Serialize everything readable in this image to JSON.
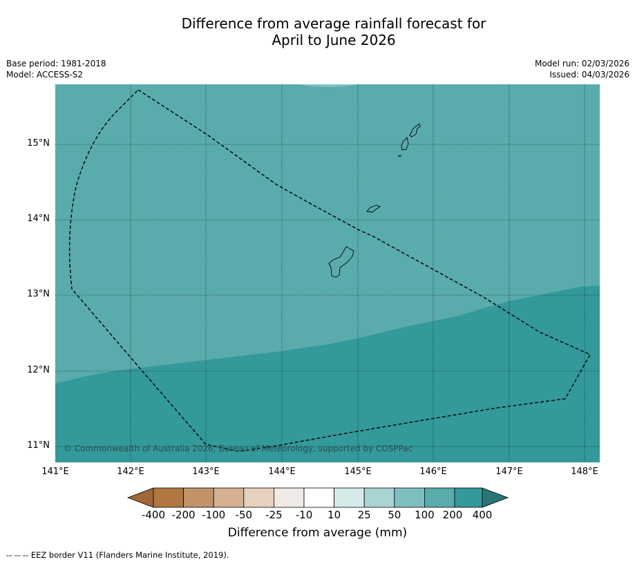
{
  "title_line1": "Difference from average rainfall forecast for",
  "title_line2": "April to June 2026",
  "meta_left": {
    "base_period": "Base period: 1981-2018",
    "model": "Model: ACCESS-S2"
  },
  "meta_right": {
    "model_run": "Model run: 02/03/2026",
    "issued": "Issued: 04/03/2026"
  },
  "map": {
    "lat_labels": [
      "15°N",
      "14°N",
      "13°N",
      "12°N",
      "11°N"
    ],
    "lon_labels": [
      "141°E",
      "142°E",
      "143°E",
      "144°E",
      "145°E",
      "146°E",
      "147°E",
      "148°E"
    ],
    "copyright": "© Commonwealth of Australia 2026, Bureau of Meteorology, supported by COSPPac",
    "colors": {
      "band_100_200": "#5aabab",
      "band_200_400": "#33999a",
      "band_50_100": "#80bfc0",
      "coast": "#000000",
      "eez": "#000000"
    }
  },
  "colorbar": {
    "labels": [
      "-400",
      "-200",
      "-100",
      "-50",
      "-25",
      "-10",
      "10",
      "25",
      "50",
      "100",
      "200",
      "400"
    ],
    "colors": [
      "#a0683a",
      "#b07840",
      "#c29368",
      "#d4b090",
      "#e6d0be",
      "#eeeae5",
      "#ffffff",
      "#d5eae9",
      "#aad3d3",
      "#80bfc0",
      "#5aabab",
      "#33999a",
      "#2a7676"
    ],
    "title": "Difference from average (mm)"
  },
  "footer": "--  --  -- EEZ border V11 (Flanders Marine Institute, 2019)."
}
